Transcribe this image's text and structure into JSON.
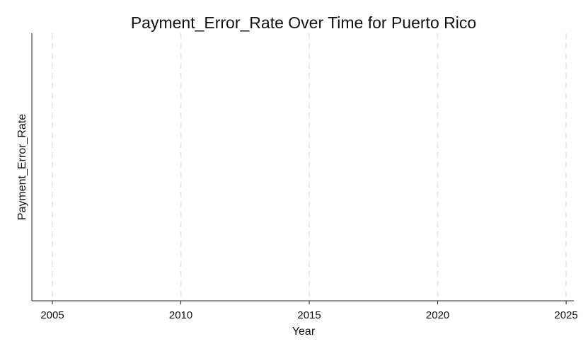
{
  "chart_data": {
    "type": "line",
    "title": "Payment_Error_Rate Over Time for Puerto Rico",
    "xlabel": "Year",
    "ylabel": "Payment_Error_Rate",
    "x_ticks": [
      2005,
      2010,
      2015,
      2020,
      2025
    ],
    "xlim": [
      2004.2,
      2025.3
    ],
    "series": [],
    "grid": {
      "vertical": true,
      "horizontal": false,
      "style": "dashed"
    },
    "legend": "none"
  },
  "colors": {
    "axis": "#222222",
    "grid": "#e9e9e9",
    "text": "#111111",
    "background": "#ffffff"
  }
}
